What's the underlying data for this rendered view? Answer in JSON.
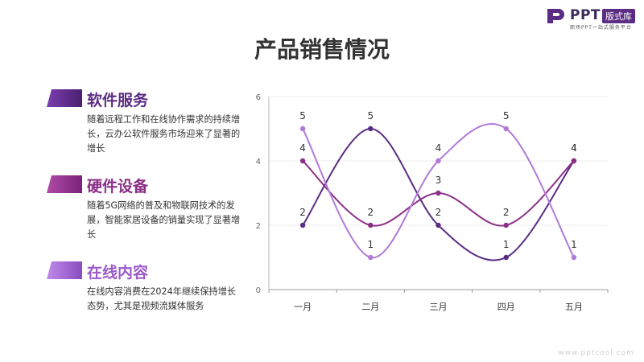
{
  "logo": {
    "name": "PPT",
    "badge": "版式库",
    "tagline": "职场PPT一站式服务平台"
  },
  "page_title": "产品销售情况",
  "items": [
    {
      "heading": "软件服务",
      "desc": "随着远程工作和在线协作需求的持续增长，云办公软件服务市场迎来了显著的增长",
      "color": "#5b2c83"
    },
    {
      "heading": "硬件设备",
      "desc": "随着5G网络的普及和物联网技术的发展，智能家居设备的销量实现了显著增长",
      "color": "#8b2f86"
    },
    {
      "heading": "在线内容",
      "desc": "在线内容消费在2024年继续保持增长态势，尤其是视频流媒体服务",
      "color": "#9b59c9"
    }
  ],
  "chart_data": {
    "type": "line",
    "smooth": true,
    "categories": [
      "一月",
      "二月",
      "三月",
      "四月",
      "五月"
    ],
    "ylim": [
      0,
      6
    ],
    "yticks": [
      0,
      2,
      4,
      6
    ],
    "grid": true,
    "series": [
      {
        "values": [
          2,
          5,
          2,
          1,
          4
        ],
        "color": "#5b2c83"
      },
      {
        "values": [
          4,
          2,
          3,
          2,
          4
        ],
        "color": "#8b2f86"
      },
      {
        "values": [
          5,
          1,
          4,
          5,
          1
        ],
        "color": "#b07ad8"
      }
    ]
  },
  "watermark": "www.pptcool.com"
}
